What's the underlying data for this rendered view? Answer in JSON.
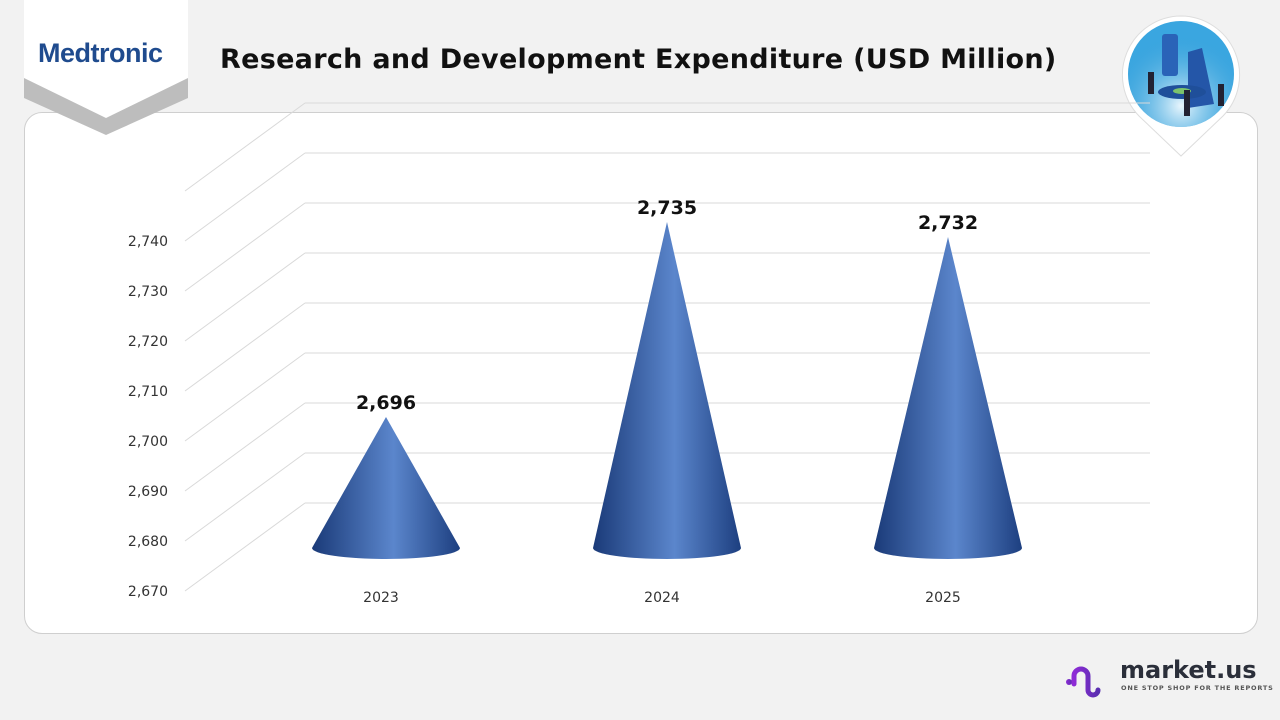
{
  "brand": {
    "company": "Medtronic",
    "publisher": "market.us",
    "publisher_tagline": "ONE STOP SHOP FOR THE REPORTS"
  },
  "chart_data": {
    "type": "bar",
    "style": "3d-cone",
    "title": "Research and Development Expenditure (USD Million)",
    "categories": [
      "2023",
      "2024",
      "2025"
    ],
    "values": [
      2696,
      2735,
      2732
    ],
    "data_labels": [
      "2,696",
      "2,735",
      "2,732"
    ],
    "ylim": [
      2670,
      2740
    ],
    "yticks": [
      "2,670",
      "2,680",
      "2,690",
      "2,700",
      "2,710",
      "2,720",
      "2,730",
      "2,740"
    ],
    "xlabel": "",
    "ylabel": "",
    "grid": true,
    "legend": "none",
    "colors": {
      "cone": "#2a5298",
      "cone_light": "#5b86cc",
      "cone_dark": "#1a3a78"
    }
  }
}
